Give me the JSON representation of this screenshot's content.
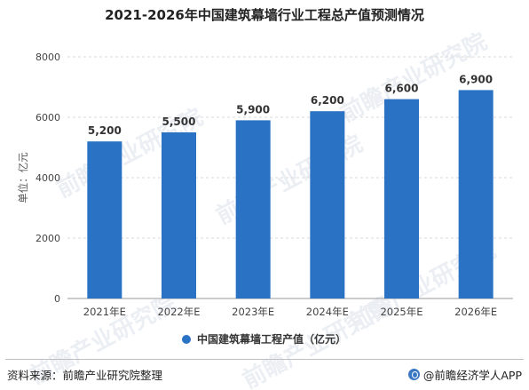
{
  "chart_data": {
    "type": "bar",
    "title": "2021-2026年中国建筑幕墙行业工程总产值预测情况",
    "ylabel": "单位：亿元",
    "xlabel": "",
    "categories": [
      "2021年E",
      "2022年E",
      "2023年E",
      "2024年E",
      "2025年E",
      "2026年E"
    ],
    "series": [
      {
        "name": "中国建筑幕墙工程产值（亿元）",
        "values": [
          5200,
          5500,
          5900,
          6200,
          6600,
          6900
        ],
        "value_labels": [
          "5,200",
          "5,500",
          "5,900",
          "6,200",
          "6,600",
          "6,900"
        ],
        "color": "#2a72c4"
      }
    ],
    "ylim": [
      0,
      8000
    ],
    "yticks": [
      0,
      2000,
      4000,
      6000,
      8000
    ],
    "grid": true,
    "legend_position": "bottom"
  },
  "watermark": "前瞻产业研究院",
  "footer": {
    "source": "资料来源：前瞻产业研究院整理",
    "brand": "@前瞻经济学人APP"
  }
}
